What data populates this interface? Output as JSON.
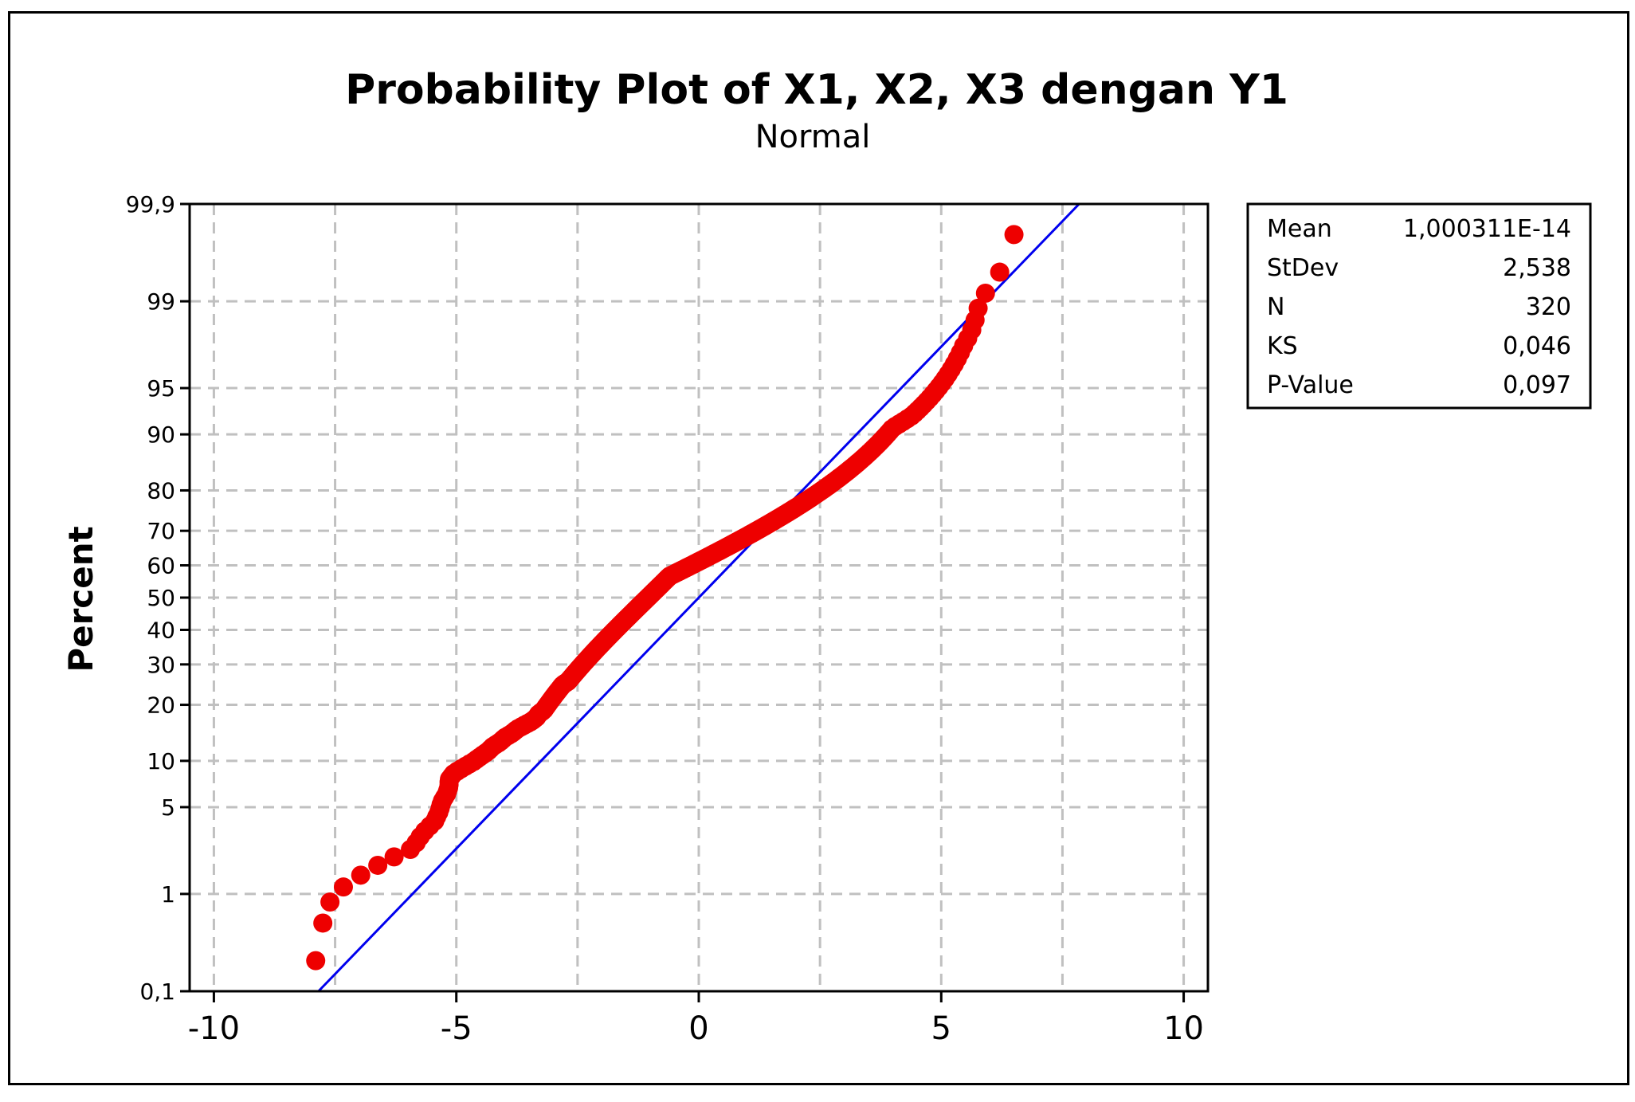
{
  "chart_data": {
    "type": "scatter",
    "title": "Probability Plot of X1, X2, X3 dengan Y1",
    "subtitle": "Normal",
    "xlabel": "",
    "ylabel": "Percent",
    "xlim": [
      -10.5,
      10.5
    ],
    "ylim": [
      0.1,
      99.9
    ],
    "y_scale": "normal-probability",
    "grid": true,
    "x_ticks": [
      {
        "value": -10,
        "label": "-10"
      },
      {
        "value": -5,
        "label": "-5"
      },
      {
        "value": 0,
        "label": "0"
      },
      {
        "value": 5,
        "label": "5"
      },
      {
        "value": 10,
        "label": "10"
      }
    ],
    "x_grid_values": [
      -10,
      -7.5,
      -5,
      -2.5,
      0,
      2.5,
      5,
      7.5,
      10
    ],
    "y_ticks": [
      {
        "value": 0.1,
        "label": "0,1"
      },
      {
        "value": 1,
        "label": "1"
      },
      {
        "value": 5,
        "label": "5"
      },
      {
        "value": 10,
        "label": "10"
      },
      {
        "value": 20,
        "label": "20"
      },
      {
        "value": 30,
        "label": "30"
      },
      {
        "value": 40,
        "label": "40"
      },
      {
        "value": 50,
        "label": "50"
      },
      {
        "value": 60,
        "label": "60"
      },
      {
        "value": 70,
        "label": "70"
      },
      {
        "value": 80,
        "label": "80"
      },
      {
        "value": 90,
        "label": "90"
      },
      {
        "value": 95,
        "label": "95"
      },
      {
        "value": 99,
        "label": "99"
      },
      {
        "value": 99.9,
        "label": "99,9"
      }
    ],
    "fit_line": {
      "mean": 0,
      "stdev": 2.538,
      "color": "#0000ee"
    },
    "points_color": "#ee0000",
    "n_points": 320,
    "x_sorted": [
      -7.9,
      -7.55,
      -6.7,
      -5.9,
      -5.7,
      -5.45,
      -5.35,
      -5.3,
      -5.2,
      -5.15,
      -5.15,
      -5.05,
      -4.85,
      -4.65,
      -4.5,
      -4.35,
      -4.25,
      -4.1,
      -4.0,
      -3.85,
      -3.75,
      -3.6,
      -3.45,
      -3.35,
      -3.3,
      -3.2,
      -3.15,
      -3.1,
      -3.05,
      -3.0,
      -2.95,
      -2.9,
      -2.85,
      -2.8,
      -2.7,
      -2.65,
      -2.6,
      -2.55,
      -2.5,
      -2.45,
      -2.4,
      -2.35,
      -2.3,
      -2.25,
      -2.2,
      -2.15,
      -2.1,
      -2.05,
      -2.0,
      -1.95,
      -1.9,
      -1.85,
      -1.8,
      -1.75,
      -1.7,
      -1.65,
      -1.6,
      -1.55,
      -1.5,
      -1.45,
      -1.4,
      -1.35,
      -1.3,
      -1.25,
      -1.2,
      -1.15,
      -1.1,
      -1.05,
      -1.0,
      -0.95,
      -0.9,
      -0.85,
      -0.8,
      -0.75,
      -0.7,
      -0.65,
      -0.6,
      -0.5,
      -0.4,
      -0.3,
      -0.2,
      -0.1,
      0.0,
      0.1,
      0.2,
      0.3,
      0.4,
      0.5,
      0.6,
      0.7,
      0.8,
      0.9,
      1.0,
      1.1,
      1.2,
      1.3,
      1.4,
      1.5,
      1.6,
      1.7,
      1.8,
      1.9,
      2.0,
      2.1,
      2.2,
      2.3,
      2.4,
      2.5,
      2.6,
      2.7,
      2.8,
      2.9,
      3.0,
      3.1,
      3.2,
      3.3,
      3.4,
      3.5,
      3.6,
      3.7,
      3.8,
      3.9,
      4.0,
      4.2,
      4.4,
      4.55,
      4.7,
      4.85,
      5.0,
      5.15,
      5.3,
      5.45,
      5.65,
      5.8,
      6.5
    ],
    "stats": [
      {
        "label": "Mean",
        "value": "1,000311E-14"
      },
      {
        "label": "StDev",
        "value": "2,538"
      },
      {
        "label": "N",
        "value": "320"
      },
      {
        "label": "KS",
        "value": "0,046"
      },
      {
        "label": "P-Value",
        "value": "0,097"
      }
    ]
  }
}
